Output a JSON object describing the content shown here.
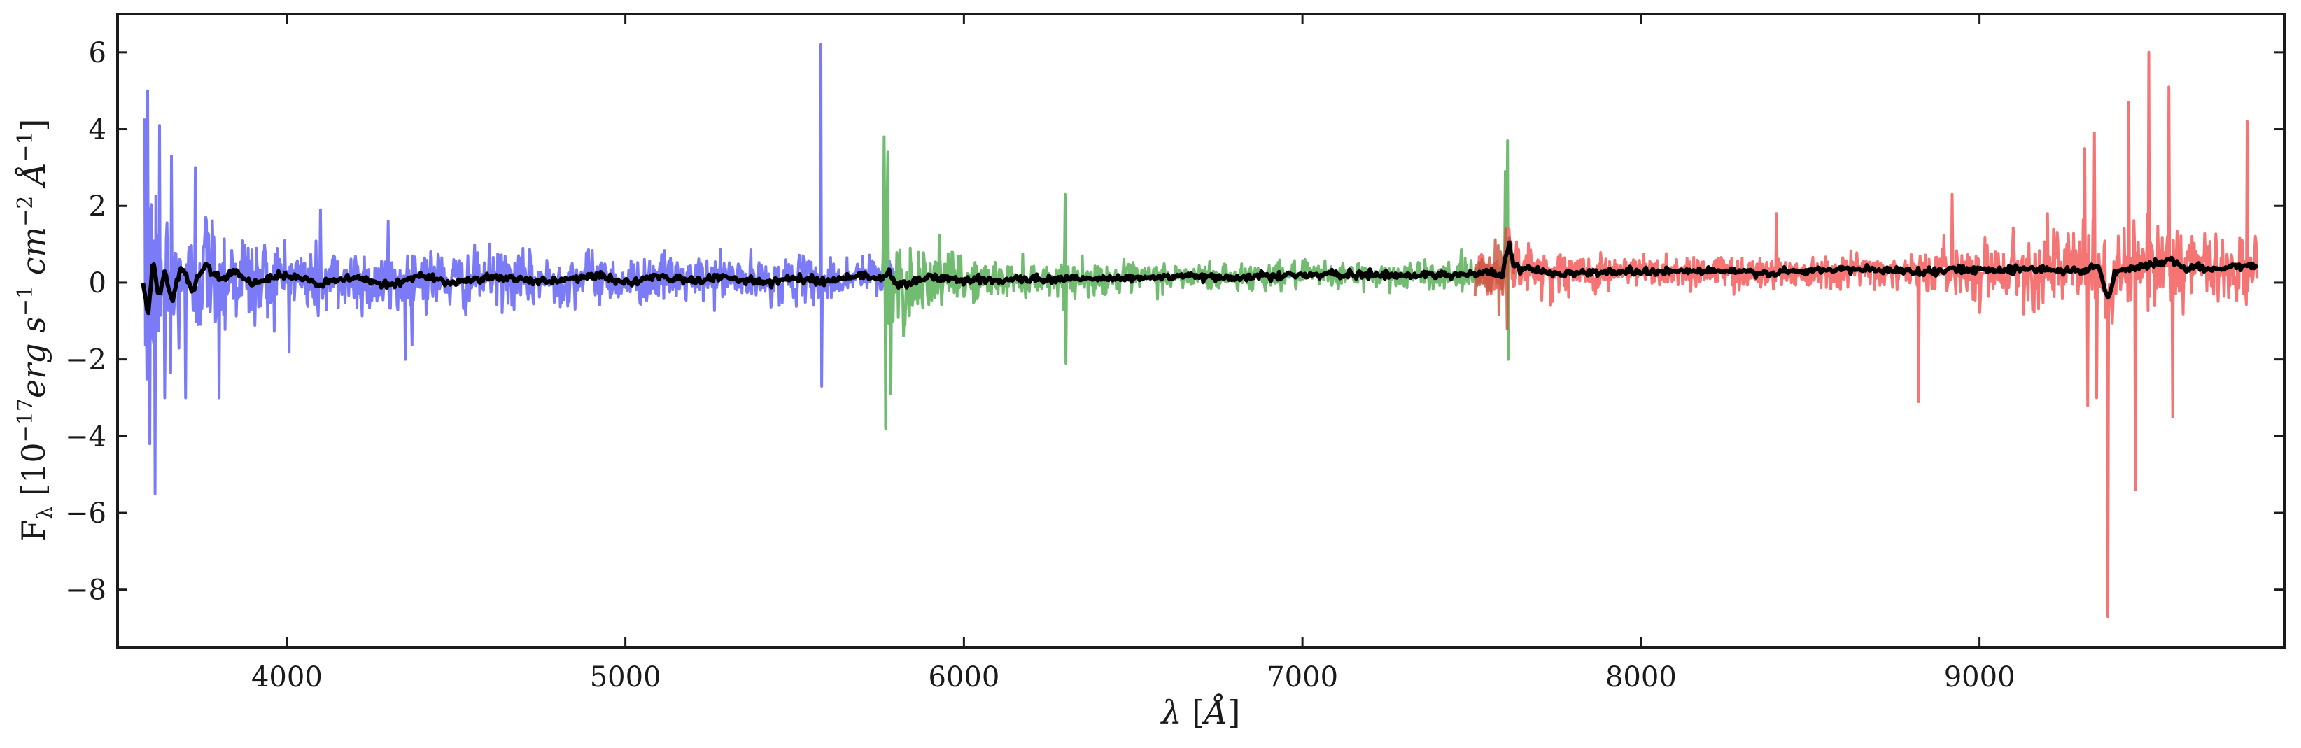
{
  "chart_data": {
    "type": "line",
    "title": "",
    "xlabel": "λ [Å]",
    "ylabel": "F_λ [10^−17 erg s^−1 cm^−2 Å^−1]",
    "xlabel_parts": {
      "symbol": "λ",
      "unit": "Å"
    },
    "ylabel_parts": {
      "symbol": "F",
      "sub": "λ",
      "exp1": "−17",
      "erg": "erg",
      "s": "s",
      "exp2": "−1",
      "cm": "cm",
      "exp3": "−2",
      "ang": "Å",
      "exp4": "−1"
    },
    "xlim": [
      3500,
      9900
    ],
    "ylim": [
      -9.5,
      7.0
    ],
    "xticks": [
      4000,
      5000,
      6000,
      7000,
      8000,
      9000
    ],
    "xtick_labels": [
      "4000",
      "5000",
      "6000",
      "7000",
      "8000",
      "9000"
    ],
    "yticks": [
      -8,
      -6,
      -4,
      -2,
      0,
      2,
      4,
      6
    ],
    "ytick_labels": [
      "−8",
      "−6",
      "−4",
      "−2",
      "0",
      "2",
      "4",
      "6"
    ],
    "grid": false,
    "legend": "none",
    "series": [
      {
        "arm": "blue",
        "color": "#7b7bf7",
        "range": [
          3580,
          5800
        ],
        "noise": [
          [
            3580,
            3.0
          ],
          [
            3700,
            1.6
          ],
          [
            4000,
            0.9
          ],
          [
            4500,
            0.7
          ],
          [
            5000,
            0.55
          ],
          [
            5800,
            0.5
          ]
        ],
        "spikes": [
          [
            3588,
            5.0
          ],
          [
            3595,
            -4.2
          ],
          [
            3610,
            -5.5
          ],
          [
            3625,
            4.1
          ],
          [
            3640,
            -3.0
          ],
          [
            3660,
            3.3
          ],
          [
            3700,
            -3.0
          ],
          [
            3730,
            3.0
          ],
          [
            3800,
            -3.0
          ],
          [
            4100,
            1.9
          ],
          [
            4300,
            1.6
          ],
          [
            4350,
            -2.0
          ],
          [
            5578,
            6.2
          ],
          [
            5580,
            -2.7
          ]
        ]
      },
      {
        "arm": "green",
        "color": "#72bc72",
        "range": [
          5760,
          7630
        ],
        "noise": [
          [
            5760,
            2.0
          ],
          [
            5850,
            0.8
          ],
          [
            6100,
            0.4
          ],
          [
            7000,
            0.3
          ],
          [
            7630,
            0.35
          ]
        ],
        "spikes": [
          [
            5765,
            3.8
          ],
          [
            5768,
            -3.8
          ],
          [
            5775,
            3.4
          ],
          [
            5785,
            -2.9
          ],
          [
            6300,
            2.3
          ],
          [
            6302,
            -2.1
          ],
          [
            7605,
            3.7
          ],
          [
            7608,
            -2.0
          ],
          [
            7600,
            2.9
          ]
        ]
      },
      {
        "arm": "red",
        "color": "#f57474",
        "range": [
          7520,
          9820
        ],
        "noise": [
          [
            7520,
            0.6
          ],
          [
            8000,
            0.4
          ],
          [
            8800,
            0.4
          ],
          [
            9300,
            1.0
          ],
          [
            9820,
            0.9
          ]
        ],
        "spikes": [
          [
            8400,
            1.8
          ],
          [
            8820,
            -3.1
          ],
          [
            8920,
            2.3
          ],
          [
            9200,
            1.8
          ],
          [
            9310,
            3.5
          ],
          [
            9320,
            -3.2
          ],
          [
            9340,
            3.9
          ],
          [
            9345,
            -3.0
          ],
          [
            9380,
            -8.7
          ],
          [
            9440,
            4.7
          ],
          [
            9460,
            -5.4
          ],
          [
            9500,
            6.0
          ],
          [
            9560,
            5.1
          ],
          [
            9570,
            -3.5
          ],
          [
            9790,
            4.2
          ]
        ]
      },
      {
        "arm": "overlap",
        "color": "#c8553f",
        "range": [
          7510,
          7625
        ],
        "noise": [
          [
            7510,
            0.6
          ],
          [
            7625,
            0.7
          ]
        ],
        "spikes": [
          [
            7600,
            1.4
          ],
          [
            7605,
            -1.2
          ]
        ]
      }
    ],
    "smoothed": {
      "color": "#000000",
      "points": [
        [
          3575,
          0.0
        ],
        [
          3590,
          -0.9
        ],
        [
          3605,
          0.6
        ],
        [
          3620,
          -0.4
        ],
        [
          3640,
          0.3
        ],
        [
          3660,
          -0.5
        ],
        [
          3690,
          0.4
        ],
        [
          3720,
          -0.2
        ],
        [
          3760,
          0.5
        ],
        [
          3800,
          0.1
        ],
        [
          3850,
          0.3
        ],
        [
          3900,
          0.0
        ],
        [
          4000,
          0.2
        ],
        [
          4100,
          -0.05
        ],
        [
          4200,
          0.15
        ],
        [
          4300,
          -0.1
        ],
        [
          4400,
          0.2
        ],
        [
          4500,
          0.0
        ],
        [
          4600,
          0.15
        ],
        [
          4700,
          0.05
        ],
        [
          4800,
          0.05
        ],
        [
          4900,
          0.2
        ],
        [
          5000,
          0.0
        ],
        [
          5100,
          0.15
        ],
        [
          5200,
          0.05
        ],
        [
          5300,
          0.15
        ],
        [
          5400,
          0.0
        ],
        [
          5500,
          0.1
        ],
        [
          5600,
          0.05
        ],
        [
          5700,
          0.2
        ],
        [
          5760,
          0.1
        ],
        [
          5780,
          0.3
        ],
        [
          5800,
          -0.1
        ],
        [
          5900,
          0.15
        ],
        [
          6000,
          0.05
        ],
        [
          6200,
          0.1
        ],
        [
          6400,
          0.1
        ],
        [
          6600,
          0.15
        ],
        [
          6800,
          0.15
        ],
        [
          7000,
          0.2
        ],
        [
          7200,
          0.2
        ],
        [
          7400,
          0.2
        ],
        [
          7550,
          0.25
        ],
        [
          7590,
          0.2
        ],
        [
          7610,
          1.0
        ],
        [
          7625,
          0.4
        ],
        [
          7700,
          0.3
        ],
        [
          7800,
          0.25
        ],
        [
          8000,
          0.3
        ],
        [
          8200,
          0.3
        ],
        [
          8400,
          0.25
        ],
        [
          8600,
          0.35
        ],
        [
          8800,
          0.3
        ],
        [
          9000,
          0.35
        ],
        [
          9200,
          0.35
        ],
        [
          9300,
          0.3
        ],
        [
          9350,
          0.45
        ],
        [
          9380,
          -0.45
        ],
        [
          9400,
          0.3
        ],
        [
          9500,
          0.45
        ],
        [
          9560,
          0.6
        ],
        [
          9600,
          0.4
        ],
        [
          9700,
          0.35
        ],
        [
          9800,
          0.45
        ],
        [
          9820,
          0.4
        ]
      ]
    }
  }
}
